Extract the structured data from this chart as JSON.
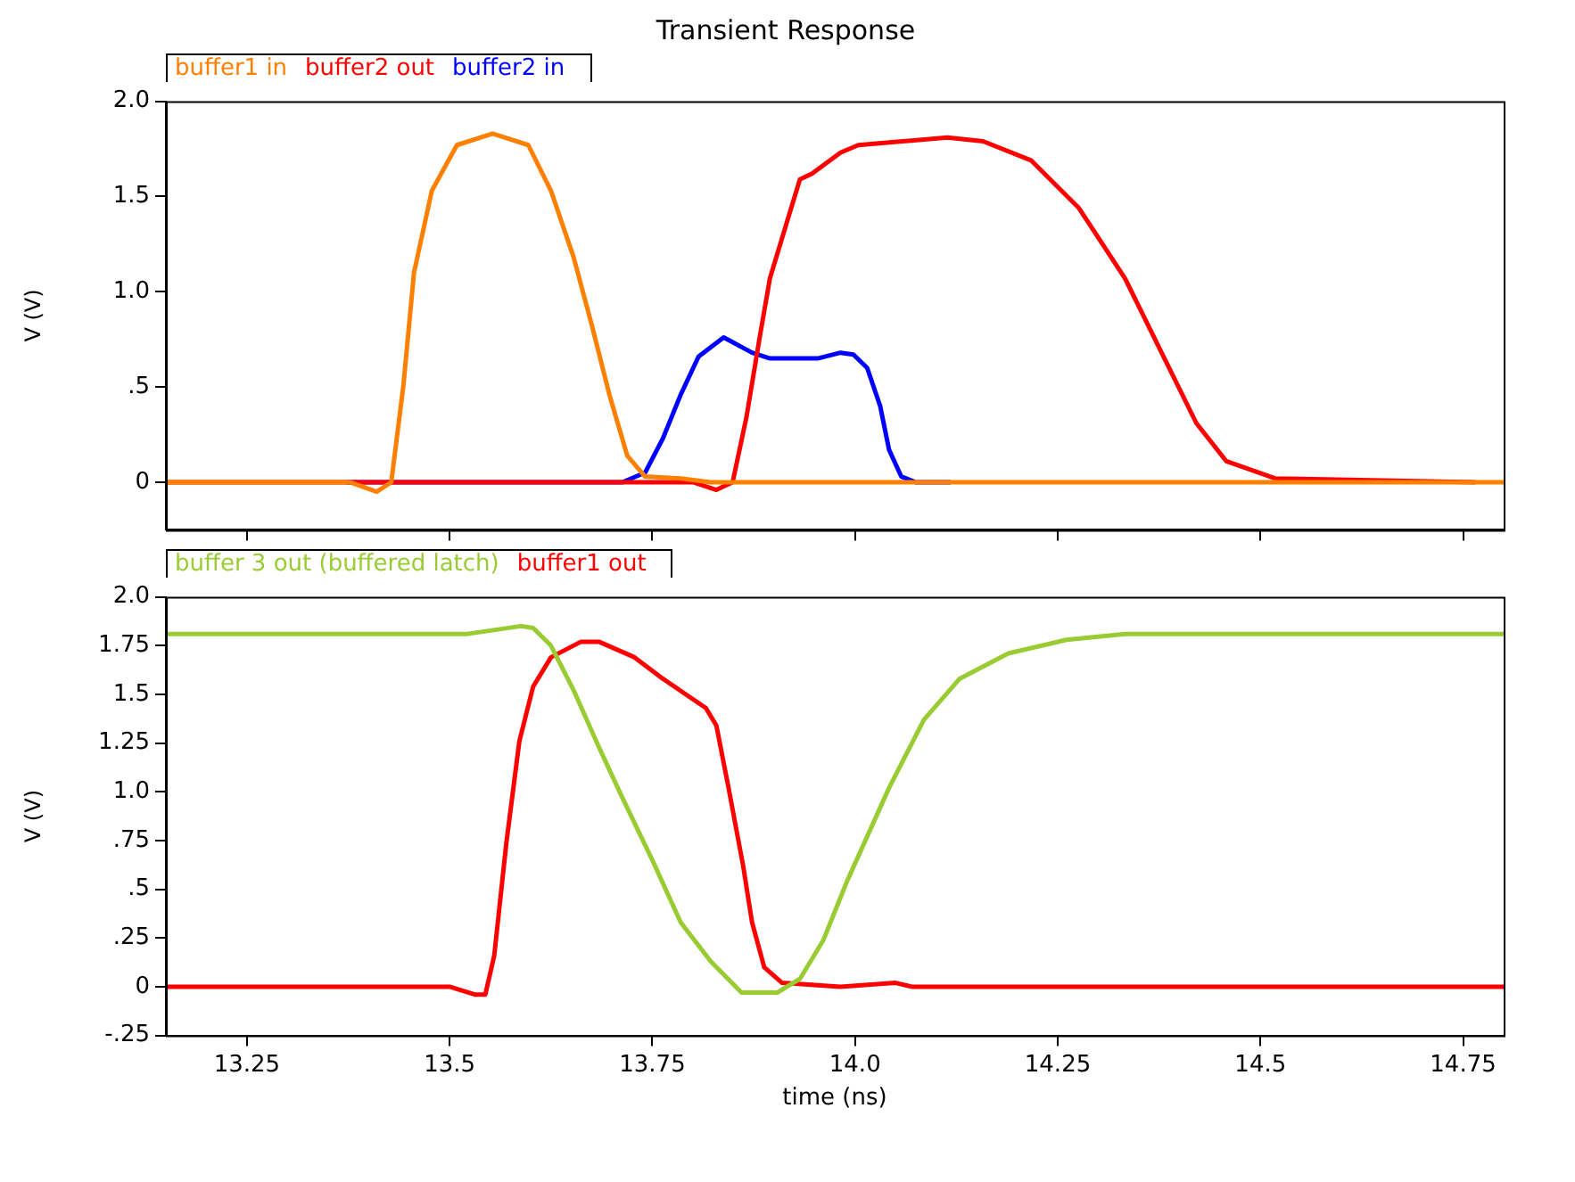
{
  "chart_data": [
    {
      "type": "line",
      "title": "Transient Response",
      "ylabel": "V (V)",
      "xlim": [
        13.15,
        14.8
      ],
      "xticks": [
        13.25,
        13.5,
        13.75,
        14,
        14.25,
        14.5,
        14.75
      ],
      "ylim": [
        -0.25,
        2.0
      ],
      "yticks": [
        0,
        {
          "value": 0.5,
          "label": ".5"
        },
        {
          "value": 1,
          "label": "1.0"
        },
        1.5,
        {
          "value": 2,
          "label": "2.0"
        }
      ],
      "tick_labels": "y",
      "legend": "top left",
      "marker": "none",
      "line_style": "solid",
      "grid": false,
      "series": [
        {
          "name": "buffer1 in",
          "color": "#ff8000",
          "x": [
            13.15,
            13.377,
            13.41,
            13.428,
            13.443,
            13.456,
            13.478,
            13.509,
            13.553,
            13.597,
            13.625,
            13.653,
            13.675,
            13.697,
            13.719,
            13.741,
            13.785,
            13.822,
            14.8
          ],
          "values": [
            0,
            0,
            -0.05,
            0,
            0.51,
            1.1,
            1.53,
            1.77,
            1.83,
            1.77,
            1.53,
            1.18,
            0.83,
            0.46,
            0.14,
            0.03,
            0.02,
            0,
            0
          ]
        },
        {
          "name": "buffer2 out",
          "color": "#ff0000",
          "x": [
            13.15,
            13.8,
            13.829,
            13.849,
            13.866,
            13.882,
            13.895,
            13.917,
            13.932,
            13.947,
            13.982,
            14.004,
            14.114,
            14.158,
            14.217,
            14.276,
            14.333,
            14.377,
            14.421,
            14.458,
            14.518,
            14.765
          ],
          "values": [
            0,
            0,
            -0.04,
            0,
            0.34,
            0.75,
            1.07,
            1.38,
            1.59,
            1.62,
            1.73,
            1.77,
            1.81,
            1.79,
            1.69,
            1.44,
            1.07,
            0.69,
            0.31,
            0.11,
            0.02,
            0
          ]
        },
        {
          "name": "buffer2 in",
          "color": "#0000ff",
          "x": [
            13.373,
            13.713,
            13.741,
            13.763,
            13.785,
            13.807,
            13.838,
            13.873,
            13.895,
            13.954,
            13.982,
            13.998,
            14.015,
            14.031,
            14.042,
            14.057,
            14.075,
            14.118
          ],
          "values": [
            0,
            0,
            0.05,
            0.23,
            0.46,
            0.66,
            0.76,
            0.68,
            0.65,
            0.65,
            0.68,
            0.67,
            0.6,
            0.4,
            0.17,
            0.03,
            0,
            0
          ]
        }
      ]
    },
    {
      "type": "line",
      "xlabel": "time (ns)",
      "ylabel": "V (V)",
      "xlim": [
        13.15,
        14.8
      ],
      "xticks": [
        13.25,
        13.5,
        13.75,
        {
          "value": 14,
          "label": "14.0"
        },
        14.25,
        14.5,
        14.75
      ],
      "ylim": [
        -0.25,
        2.0
      ],
      "yticks": [
        {
          "value": -0.25,
          "label": "-.25"
        },
        0,
        {
          "value": 0.25,
          "label": ".25"
        },
        {
          "value": 0.5,
          "label": ".5"
        },
        {
          "value": 0.75,
          "label": ".75"
        },
        {
          "value": 1,
          "label": "1.0"
        },
        1.25,
        1.5,
        1.75,
        {
          "value": 2,
          "label": "2.0"
        }
      ],
      "legend": "top left",
      "marker": "none",
      "line_style": "solid",
      "grid": false,
      "series": [
        {
          "name": "buffer 3 out (buffered latch)",
          "color": "#99cc33",
          "x": [
            13.15,
            13.522,
            13.588,
            13.603,
            13.625,
            13.653,
            13.684,
            13.713,
            13.75,
            13.785,
            13.822,
            13.86,
            13.904,
            13.932,
            13.961,
            13.99,
            14.042,
            14.085,
            14.129,
            14.189,
            14.261,
            14.333,
            14.8
          ],
          "values": [
            1.81,
            1.81,
            1.85,
            1.84,
            1.75,
            1.52,
            1.23,
            0.97,
            0.65,
            0.33,
            0.13,
            -0.03,
            -0.03,
            0.04,
            0.24,
            0.54,
            1.02,
            1.37,
            1.58,
            1.71,
            1.78,
            1.81,
            1.81
          ]
        },
        {
          "name": "buffer1 out",
          "color": "#ff0000",
          "x": [
            13.15,
            13.5,
            13.531,
            13.544,
            13.555,
            13.57,
            13.586,
            13.603,
            13.625,
            13.662,
            13.684,
            13.728,
            13.763,
            13.816,
            13.829,
            13.844,
            13.862,
            13.873,
            13.888,
            13.91,
            13.982,
            14.05,
            14.07,
            14.8
          ],
          "values": [
            0,
            0,
            -0.04,
            -0.04,
            0.16,
            0.74,
            1.26,
            1.54,
            1.69,
            1.77,
            1.77,
            1.69,
            1.58,
            1.43,
            1.34,
            1.02,
            0.62,
            0.33,
            0.1,
            0.02,
            0,
            0.02,
            0,
            0
          ]
        }
      ]
    }
  ]
}
